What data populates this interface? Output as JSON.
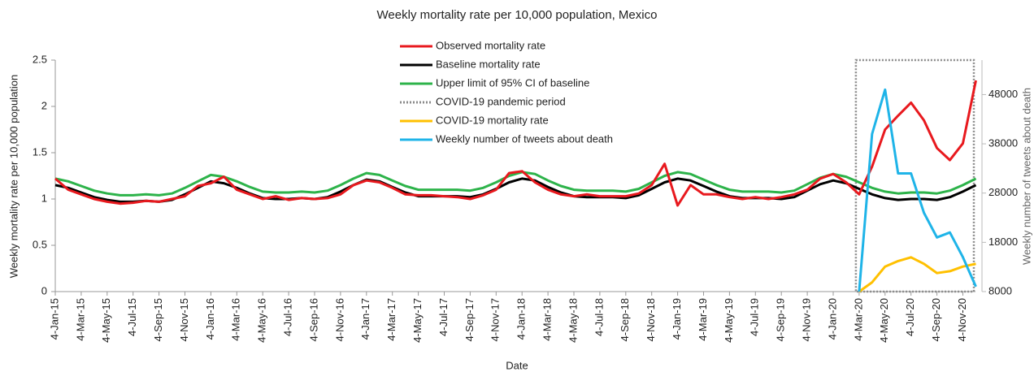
{
  "chart_data": {
    "type": "line",
    "title": "Weekly mortality rate per 10,000 population, Mexico",
    "x_label": "Date",
    "y_label": "Weekly mortality rate per 10,000 population",
    "y2_label": "Weekly number of tweets about death",
    "categories": [
      "4-Jan-15",
      null,
      "4-Mar-15",
      null,
      "4-May-15",
      null,
      "4-Jul-15",
      null,
      "4-Sep-15",
      null,
      "4-Nov-15",
      null,
      "4-Jan-16",
      null,
      "4-Mar-16",
      null,
      "4-May-16",
      null,
      "4-Jul-16",
      null,
      "4-Sep-16",
      null,
      "4-Nov-16",
      null,
      "4-Jan-17",
      null,
      "4-Mar-17",
      null,
      "4-May-17",
      null,
      "4-Jul-17",
      null,
      "4-Sep-17",
      null,
      "4-Nov-17",
      null,
      "4-Jan-18",
      null,
      "4-Mar-18",
      null,
      "4-May-18",
      null,
      "4-Jul-18",
      null,
      "4-Sep-18",
      null,
      "4-Nov-18",
      null,
      "4-Jan-19",
      null,
      "4-Mar-19",
      null,
      "4-May-19",
      null,
      "4-Jul-19",
      null,
      "4-Sep-19",
      null,
      "4-Nov-19",
      null,
      "4-Jan-20",
      null,
      "4-Mar-20",
      null,
      "4-May-20",
      null,
      "4-Jul-20",
      null,
      "4-Sep-20",
      null,
      "4-Nov-20",
      null
    ],
    "ylim": [
      0,
      2.5
    ],
    "yticks": [
      0,
      0.5,
      1,
      1.5,
      2,
      2.5
    ],
    "y2lim": [
      8000,
      55000
    ],
    "y2ticks": [
      8000,
      18000,
      28000,
      38000,
      48000
    ],
    "pandemic_period": {
      "name": "COVID-19 pandemic period",
      "start": "4-Mar-20",
      "color": "#8c8c8c"
    },
    "series": [
      {
        "name": "Upper limit of 95% CI of baseline",
        "color": "#2db34a",
        "values": [
          1.22,
          1.19,
          1.14,
          1.09,
          1.06,
          1.04,
          1.04,
          1.05,
          1.04,
          1.06,
          1.12,
          1.19,
          1.26,
          1.24,
          1.19,
          1.13,
          1.08,
          1.07,
          1.07,
          1.08,
          1.07,
          1.09,
          1.15,
          1.22,
          1.28,
          1.26,
          1.2,
          1.14,
          1.1,
          1.1,
          1.1,
          1.1,
          1.09,
          1.12,
          1.18,
          1.25,
          1.29,
          1.27,
          1.2,
          1.14,
          1.1,
          1.09,
          1.09,
          1.09,
          1.08,
          1.11,
          1.18,
          1.25,
          1.29,
          1.27,
          1.21,
          1.15,
          1.1,
          1.08,
          1.08,
          1.08,
          1.07,
          1.09,
          1.16,
          1.23,
          1.27,
          1.24,
          1.18,
          1.12,
          1.08,
          1.06,
          1.07,
          1.07,
          1.06,
          1.09,
          1.15,
          1.22
        ]
      },
      {
        "name": "Baseline mortality rate",
        "color": "#000000",
        "values": [
          1.15,
          1.12,
          1.07,
          1.02,
          0.99,
          0.97,
          0.97,
          0.98,
          0.97,
          0.99,
          1.05,
          1.12,
          1.19,
          1.17,
          1.12,
          1.06,
          1.01,
          1.0,
          1.0,
          1.01,
          1.0,
          1.02,
          1.08,
          1.15,
          1.21,
          1.19,
          1.13,
          1.07,
          1.03,
          1.03,
          1.03,
          1.03,
          1.02,
          1.05,
          1.11,
          1.18,
          1.22,
          1.2,
          1.13,
          1.07,
          1.03,
          1.02,
          1.02,
          1.02,
          1.01,
          1.04,
          1.11,
          1.18,
          1.22,
          1.2,
          1.14,
          1.08,
          1.03,
          1.01,
          1.01,
          1.01,
          1.0,
          1.02,
          1.09,
          1.16,
          1.2,
          1.17,
          1.11,
          1.05,
          1.01,
          0.99,
          1.0,
          1.0,
          0.99,
          1.02,
          1.08,
          1.15
        ]
      },
      {
        "name": "Observed mortality rate",
        "color": "#e8191e",
        "values": [
          1.22,
          1.1,
          1.05,
          1.0,
          0.97,
          0.95,
          0.96,
          0.98,
          0.97,
          1.0,
          1.03,
          1.14,
          1.17,
          1.24,
          1.1,
          1.05,
          1.0,
          1.03,
          0.99,
          1.01,
          1.0,
          1.01,
          1.05,
          1.15,
          1.2,
          1.18,
          1.12,
          1.05,
          1.04,
          1.04,
          1.03,
          1.02,
          1.0,
          1.04,
          1.1,
          1.28,
          1.3,
          1.18,
          1.1,
          1.05,
          1.03,
          1.05,
          1.03,
          1.03,
          1.03,
          1.06,
          1.15,
          1.38,
          0.93,
          1.15,
          1.05,
          1.05,
          1.02,
          1.0,
          1.02,
          1.0,
          1.02,
          1.05,
          1.1,
          1.22,
          1.27,
          1.18,
          1.05,
          1.35,
          1.75,
          1.9,
          2.04,
          1.85,
          1.55,
          1.42,
          1.6,
          2.28
        ]
      },
      {
        "name": "COVID-19 mortality rate",
        "color": "#ffc000",
        "values": [
          null,
          null,
          null,
          null,
          null,
          null,
          null,
          null,
          null,
          null,
          null,
          null,
          null,
          null,
          null,
          null,
          null,
          null,
          null,
          null,
          null,
          null,
          null,
          null,
          null,
          null,
          null,
          null,
          null,
          null,
          null,
          null,
          null,
          null,
          null,
          null,
          null,
          null,
          null,
          null,
          null,
          null,
          null,
          null,
          null,
          null,
          null,
          null,
          null,
          null,
          null,
          null,
          null,
          null,
          null,
          null,
          null,
          null,
          null,
          null,
          null,
          null,
          0,
          0.1,
          0.27,
          0.33,
          0.37,
          0.3,
          0.2,
          0.22,
          0.27,
          0.3
        ]
      },
      {
        "name": "Weekly number of tweets about death",
        "color": "#1fb4e8",
        "axis": "y2",
        "values": [
          null,
          null,
          null,
          null,
          null,
          null,
          null,
          null,
          null,
          null,
          null,
          null,
          null,
          null,
          null,
          null,
          null,
          null,
          null,
          null,
          null,
          null,
          null,
          null,
          null,
          null,
          null,
          null,
          null,
          null,
          null,
          null,
          null,
          null,
          null,
          null,
          null,
          null,
          null,
          null,
          null,
          null,
          null,
          null,
          null,
          null,
          null,
          null,
          null,
          null,
          null,
          null,
          null,
          null,
          null,
          null,
          null,
          null,
          null,
          null,
          null,
          null,
          8000,
          40000,
          49000,
          32000,
          32000,
          24000,
          19000,
          20000,
          15000,
          9000
        ]
      }
    ]
  }
}
